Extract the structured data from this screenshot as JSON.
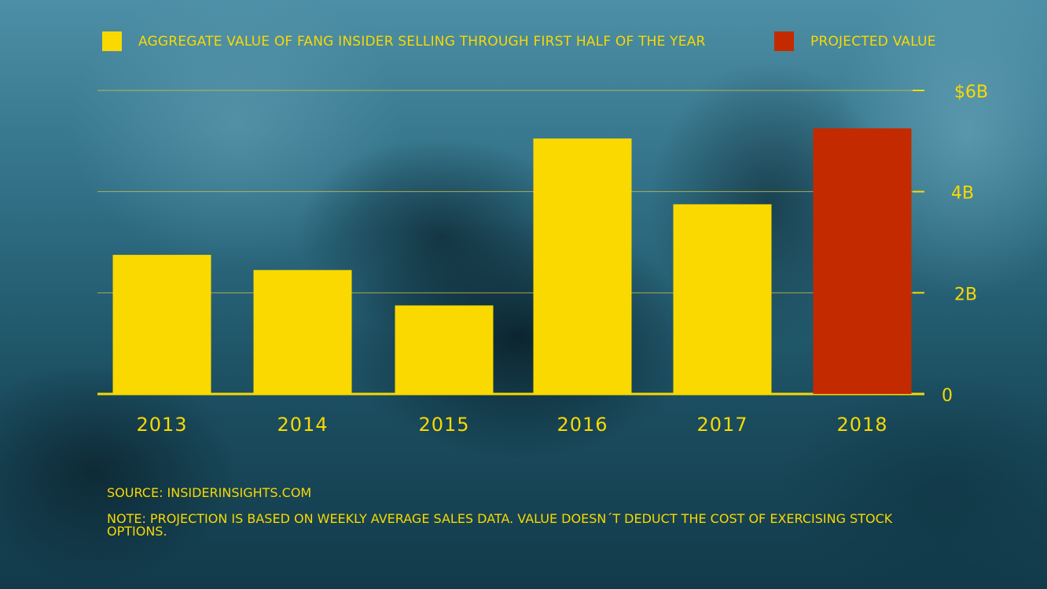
{
  "legend": {
    "actual_label": "AGGREGATE VALUE OF FANG INSIDER SELLING THROUGH FIRST HALF OF THE YEAR",
    "projected_label": "PROJECTED VALUE"
  },
  "colors": {
    "actual": "#f9d900",
    "projected": "#c42a00",
    "text": "#f9d900",
    "grid": "#c9c04a"
  },
  "chart_data": {
    "type": "bar",
    "categories": [
      "2013",
      "2014",
      "2015",
      "2016",
      "2017",
      "2018"
    ],
    "series": [
      {
        "name": "AGGREGATE VALUE OF FANG INSIDER SELLING THROUGH FIRST HALF OF THE YEAR",
        "values": [
          2.75,
          2.45,
          1.75,
          5.05,
          3.75,
          null
        ]
      },
      {
        "name": "PROJECTED VALUE",
        "values": [
          null,
          null,
          null,
          null,
          null,
          5.25
        ]
      }
    ],
    "ylim": [
      0,
      6
    ],
    "y_ticks": [
      0,
      2,
      4,
      6
    ],
    "y_tick_labels": [
      "0",
      "2B",
      "4B",
      "$6B"
    ],
    "grid": true,
    "legend_position": "top"
  },
  "footer": {
    "source": "SOURCE: INSIDERINSIGHTS.COM",
    "note": "NOTE: PROJECTION IS BASED ON WEEKLY AVERAGE SALES DATA. VALUE DOESN´T DEDUCT THE COST OF EXERCISING STOCK OPTIONS."
  }
}
